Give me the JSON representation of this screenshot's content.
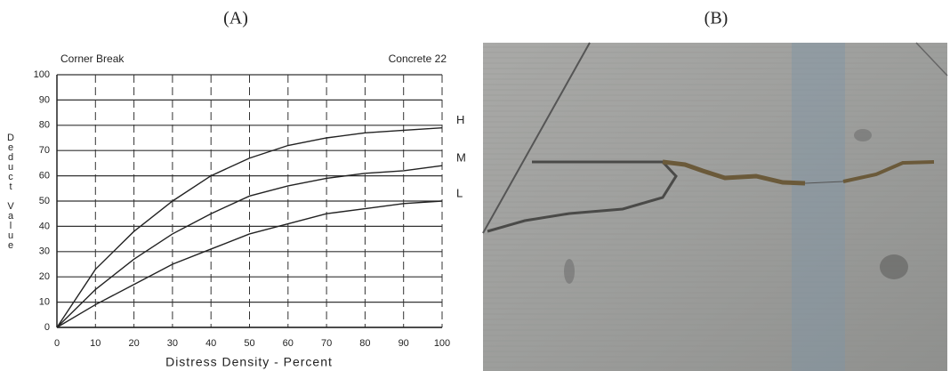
{
  "panels": [
    "(A)",
    "(B)"
  ],
  "chart_data": {
    "type": "line",
    "title": "Corner Break",
    "subtitle": "Concrete 22",
    "x_label": "Distress Density - Percent",
    "y_label": "Deduct Value",
    "x": [
      0,
      10,
      20,
      30,
      40,
      50,
      60,
      70,
      80,
      90,
      100
    ],
    "series": [
      {
        "name": "H",
        "color": "#222222",
        "values": [
          0,
          23,
          38,
          50,
          60,
          67,
          72,
          75,
          77,
          78,
          79
        ]
      },
      {
        "name": "M",
        "color": "#222222",
        "values": [
          0,
          15,
          27,
          37,
          45,
          52,
          56,
          59,
          61,
          62,
          64
        ]
      },
      {
        "name": "L",
        "color": "#222222",
        "values": [
          0,
          9,
          17,
          25,
          31,
          37,
          41,
          45,
          47,
          49,
          50
        ]
      }
    ],
    "xlim": [
      0,
      100
    ],
    "ylim": [
      0,
      100
    ],
    "xticks": [
      0,
      10,
      20,
      30,
      40,
      50,
      60,
      70,
      80,
      90,
      100
    ],
    "yticks": [
      0,
      10,
      20,
      30,
      40,
      50,
      60,
      70,
      80,
      90,
      100
    ],
    "grid": true
  }
}
